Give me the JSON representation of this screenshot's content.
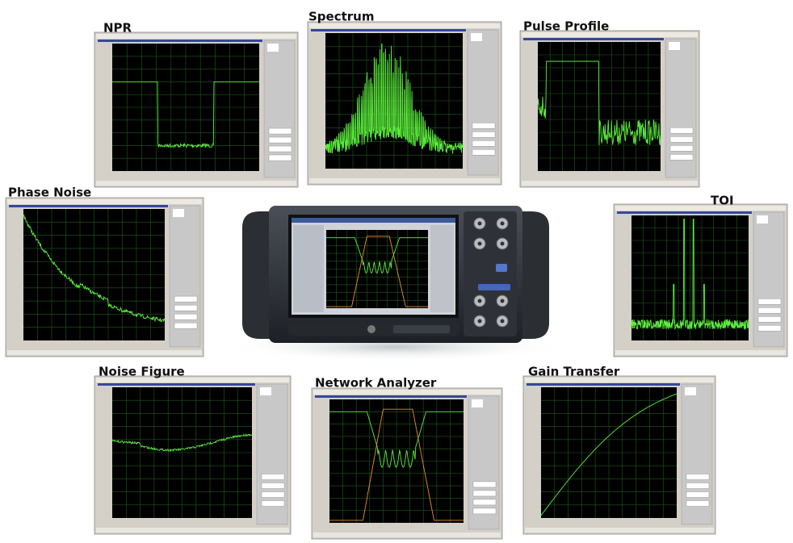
{
  "panels": [
    {
      "title": "NPR"
    },
    {
      "title": "Spectrum"
    },
    {
      "title": "Pulse Profile"
    },
    {
      "title": "Phase Noise"
    },
    {
      "title": "TOI"
    },
    {
      "title": "Noise Figure"
    },
    {
      "title": "Network Analyzer"
    },
    {
      "title": "Gain Transfer"
    }
  ]
}
